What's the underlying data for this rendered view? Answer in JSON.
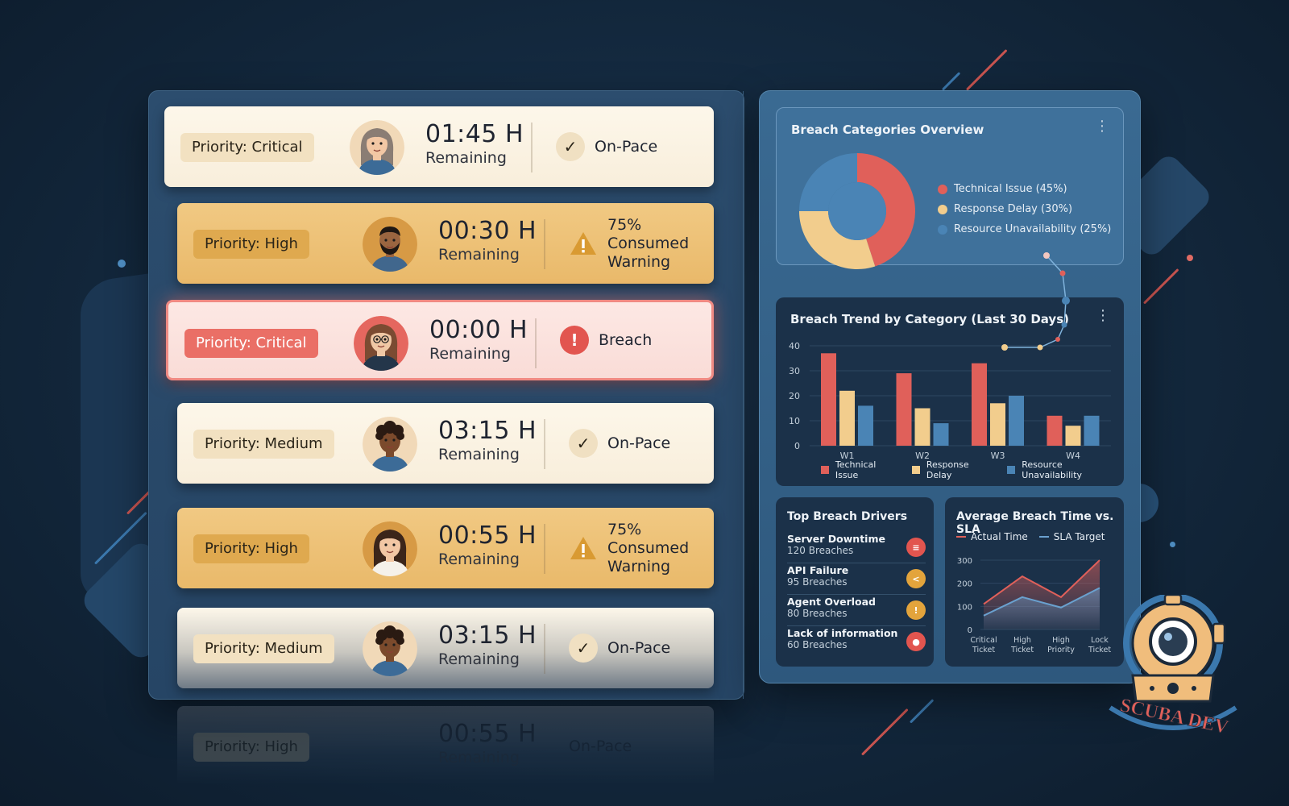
{
  "tickets": [
    {
      "priority": "Priority: Critical",
      "time": "01:45 H",
      "caption": "Remaining",
      "status": "On-Pace",
      "status_type": "ok",
      "style": "cream",
      "pill": "cream-pill",
      "avatar": "woman-gray-hair"
    },
    {
      "priority": "Priority: High",
      "time": "00:30 H",
      "caption": "Remaining",
      "status": "75% Consumed Warning",
      "status_line1": "75% Consumed",
      "status_line2": "Warning",
      "status_type": "warn",
      "style": "amber",
      "pill": "amber-pill",
      "avatar": "man-beard"
    },
    {
      "priority": "Priority: Critical",
      "time": "00:00 H",
      "caption": "Remaining",
      "status": "Breach",
      "status_type": "bad",
      "style": "pink",
      "pill": "red-pill",
      "avatar": "woman-glasses"
    },
    {
      "priority": "Priority: Medium",
      "time": "03:15 H",
      "caption": "Remaining",
      "status": "On-Pace",
      "status_type": "ok",
      "style": "cream",
      "pill": "cream-pill",
      "avatar": "man-curly"
    },
    {
      "priority": "Priority: High",
      "time": "00:55 H",
      "caption": "Remaining",
      "status": "75% Consumed Warning",
      "status_line1": "75% Consumed",
      "status_line2": "Warning",
      "status_type": "warn",
      "style": "amber",
      "pill": "amber-pill",
      "avatar": "woman-ponytail"
    },
    {
      "priority": "Priority: Medium",
      "time": "03:15 H",
      "caption": "Remaining",
      "status": "On-Pace",
      "status_type": "ok",
      "style": "fade",
      "pill": "cream-pill",
      "avatar": "man-curly"
    }
  ],
  "ghost_ticket": {
    "priority": "Priority: High",
    "time": "00:55 H",
    "caption": "Remaining",
    "status": "On-Pace"
  },
  "icons": {
    "ok": "check-icon",
    "warn": "warning-triangle-icon",
    "bad": "alert-circle-icon",
    "menu": "kebab-menu-icon"
  },
  "colors": {
    "critical": "#e2554f",
    "warning": "#e3a43c",
    "tech": "#e0605a",
    "delay": "#f2cd8d",
    "resource": "#4a84b5"
  },
  "breach_categories": {
    "title": "Breach Categories Overview",
    "legend": [
      "Technical Issue (45%)",
      "Response Delay (30%)",
      "Resource Unavailability (25%)"
    ]
  },
  "breach_trend": {
    "title": "Breach Trend by Category (Last 30 Days)",
    "legend": [
      "Technical Issue",
      "Response Delay",
      "Resource Unavailability"
    ]
  },
  "top_drivers": {
    "title": "Top Breach Drivers",
    "items": [
      {
        "name": "Server Downtime",
        "count": "120 Breaches",
        "icon": "server-icon",
        "color": "#e2554f"
      },
      {
        "name": "API Failure",
        "count": "95 Breaches",
        "icon": "share-icon",
        "color": "#e3a43c"
      },
      {
        "name": "Agent Overload",
        "count": "80 Breaches",
        "icon": "warning-icon",
        "color": "#e3a43c"
      },
      {
        "name": "Lack of information",
        "count": "60 Breaches",
        "icon": "person-icon",
        "color": "#e2554f"
      }
    ]
  },
  "avg_breach": {
    "title": "Average Breach Time vs. SLA",
    "legend": [
      "Actual Time",
      "SLA Target"
    ]
  },
  "brand": {
    "text": "SCUBA DEV"
  },
  "chart_data": [
    {
      "type": "pie",
      "title": "Breach Categories Overview",
      "categories": [
        "Technical Issue",
        "Response Delay",
        "Resource Unavailability"
      ],
      "values": [
        45,
        30,
        25
      ],
      "colors": [
        "#e0605a",
        "#f2cd8d",
        "#4a84b5"
      ],
      "donut": true,
      "legend_position": "right"
    },
    {
      "type": "bar",
      "title": "Breach Trend by Category (Last 30 Days)",
      "categories": [
        "W1",
        "W2",
        "W3",
        "W4"
      ],
      "series": [
        {
          "name": "Technical Issue",
          "values": [
            37,
            29,
            33,
            12
          ],
          "color": "#e0605a"
        },
        {
          "name": "Response Delay",
          "values": [
            22,
            15,
            17,
            8
          ],
          "color": "#f2cd8d"
        },
        {
          "name": "Resource Unavailability",
          "values": [
            16,
            9,
            20,
            12
          ],
          "color": "#4a84b5"
        }
      ],
      "ylim": [
        0,
        40
      ],
      "yticks": [
        "0",
        "10",
        "20",
        "30",
        "40"
      ],
      "grid": true,
      "legend_position": "bottom"
    },
    {
      "type": "area",
      "title": "Average Breach Time vs. SLA",
      "categories": [
        "Critical Ticket",
        "High Ticket",
        "High Priority",
        "Lock Ticket"
      ],
      "series": [
        {
          "name": "Actual Time",
          "values": [
            110,
            230,
            140,
            300
          ],
          "color": "#e0605a"
        },
        {
          "name": "SLA Target",
          "values": [
            60,
            140,
            95,
            180
          ],
          "color": "#6aa1cf"
        }
      ],
      "ylim": [
        0,
        300
      ],
      "yticks": [
        "0",
        "100",
        "200",
        "300"
      ],
      "legend_position": "top"
    }
  ]
}
